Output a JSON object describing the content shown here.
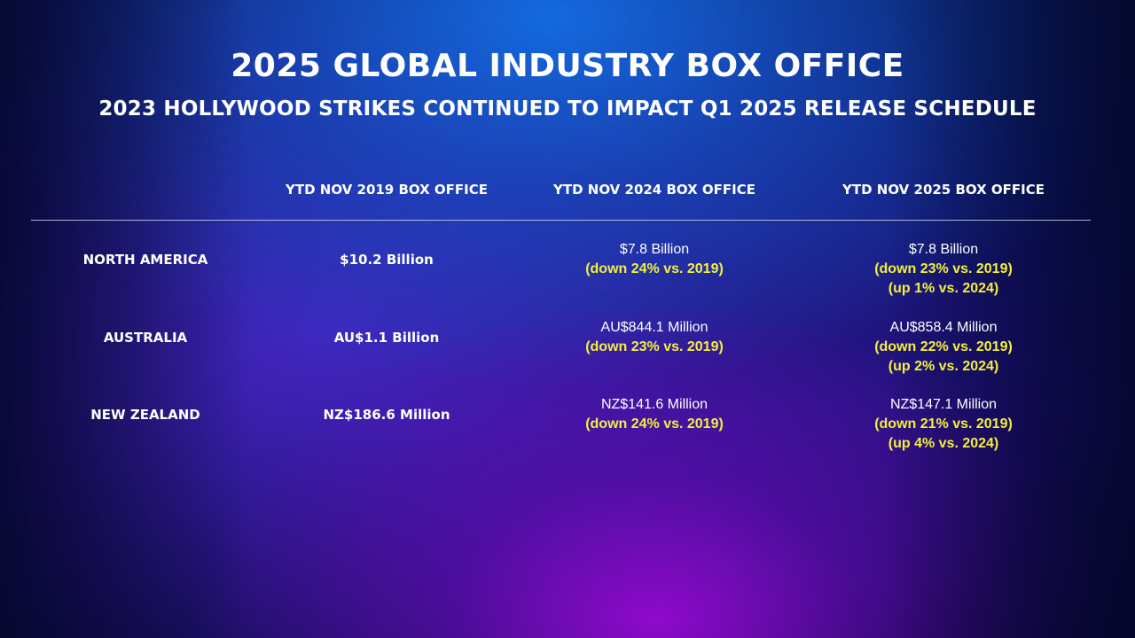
{
  "slide": {
    "title": "2025 GLOBAL INDUSTRY BOX OFFICE",
    "subtitle": "2023 HOLLYWOOD STRIKES CONTINUED TO IMPACT Q1 2025 RELEASE SCHEDULE"
  },
  "table": {
    "columns": [
      "YTD NOV 2019 BOX OFFICE",
      "YTD NOV 2024 BOX OFFICE",
      "YTD NOV 2025 BOX OFFICE"
    ],
    "rows": [
      {
        "region": "NORTH AMERICA",
        "y2019": "$10.2 Billion",
        "y2024": {
          "amount": "$7.8 Billion",
          "vs2019": "(down 24% vs. 2019)"
        },
        "y2025": {
          "amount": "$7.8 Billion",
          "vs2019": "(down 23% vs. 2019)",
          "vs2024": "(up 1% vs. 2024)"
        }
      },
      {
        "region": "AUSTRALIA",
        "y2019": "AU$1.1 Billion",
        "y2024": {
          "amount": "AU$844.1 Million",
          "vs2019": "(down 23% vs. 2019)"
        },
        "y2025": {
          "amount": "AU$858.4 Million",
          "vs2019": "(down 22% vs. 2019)",
          "vs2024": "(up 2% vs. 2024)"
        }
      },
      {
        "region": "NEW ZEALAND",
        "y2019": "NZ$186.6 Million",
        "y2024": {
          "amount": "NZ$141.6 Million",
          "vs2019": "(down 24% vs. 2019)"
        },
        "y2025": {
          "amount": "NZ$147.1 Million",
          "vs2019": "(down 21% vs. 2019)",
          "vs2024": "(up 4% vs. 2024)"
        }
      }
    ]
  },
  "colors": {
    "highlight": "#f5ef3b",
    "text": "#ffffff"
  }
}
